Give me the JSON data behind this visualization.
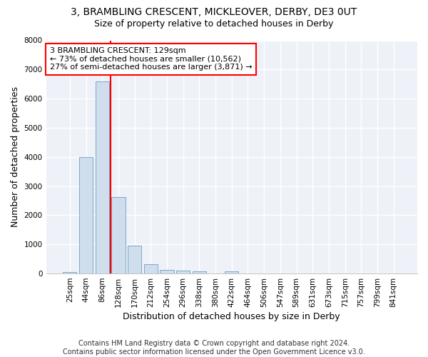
{
  "title_line1": "3, BRAMBLING CRESCENT, MICKLEOVER, DERBY, DE3 0UT",
  "title_line2": "Size of property relative to detached houses in Derby",
  "xlabel": "Distribution of detached houses by size in Derby",
  "ylabel": "Number of detached properties",
  "footer_line1": "Contains HM Land Registry data © Crown copyright and database right 2024.",
  "footer_line2": "Contains public sector information licensed under the Open Government Licence v3.0.",
  "bar_labels": [
    "25sqm",
    "44sqm",
    "86sqm",
    "128sqm",
    "170sqm",
    "212sqm",
    "254sqm",
    "296sqm",
    "338sqm",
    "380sqm",
    "422sqm",
    "464sqm",
    "506sqm",
    "547sqm",
    "589sqm",
    "631sqm",
    "673sqm",
    "715sqm",
    "757sqm",
    "799sqm",
    "841sqm"
  ],
  "bar_values": [
    60,
    4000,
    6600,
    2620,
    960,
    330,
    130,
    90,
    70,
    0,
    80,
    0,
    0,
    0,
    0,
    0,
    0,
    0,
    0,
    0,
    0
  ],
  "bar_color": "#cfdded",
  "bar_edge_color": "#7aaac8",
  "annotation_box_text": "3 BRAMBLING CRESCENT: 129sqm\n← 73% of detached houses are smaller (10,562)\n27% of semi-detached houses are larger (3,871) →",
  "annotation_box_color": "white",
  "annotation_box_edge_color": "red",
  "annotation_line_color": "red",
  "red_line_x": 2.5,
  "ylim": [
    0,
    8000
  ],
  "background_color": "#ffffff",
  "plot_background_color": "#eef2f8",
  "grid_color": "#ffffff",
  "title_fontsize": 10,
  "subtitle_fontsize": 9,
  "axis_label_fontsize": 9,
  "tick_fontsize": 7.5,
  "annotation_fontsize": 8,
  "footer_fontsize": 7
}
